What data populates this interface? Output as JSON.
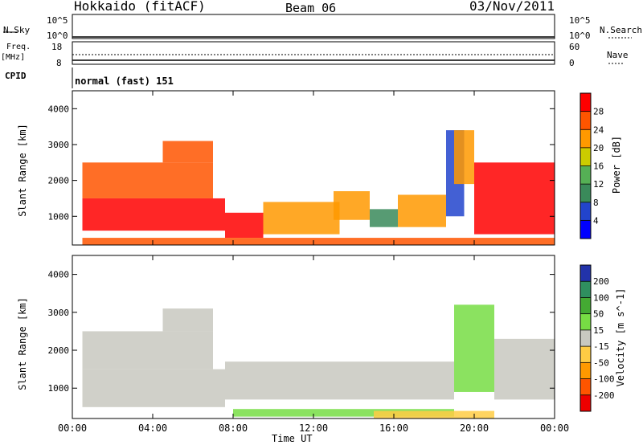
{
  "header": {
    "station": "Hokkaido (fitACF)",
    "beam": "Beam 06",
    "date": "03/Nov/2011"
  },
  "top_panels": {
    "nsky_label": "N.Sky",
    "nsky_ticks": [
      "10^5",
      "10^0"
    ],
    "nsearch_label": "N.Search",
    "nsearch_ticks": [
      "10^5",
      "10^0"
    ],
    "freq_label": "Freq.",
    "freq_unit": "[MHz]",
    "freq_ticks": [
      "18",
      "8"
    ],
    "nave_label": "Nave",
    "nave_ticks": [
      "60",
      "0"
    ],
    "cpid_label": "CPID",
    "cpid_value": "normal (fast) 151"
  },
  "chart_data": [
    {
      "type": "heatmap",
      "title": "",
      "xlabel": "",
      "ylabel": "Slant Range [km]",
      "x_ticks": [
        "00:00",
        "04:00",
        "08:00",
        "12:00",
        "16:00",
        "20:00",
        "00:00"
      ],
      "y_ticks": [
        "1000",
        "2000",
        "3000",
        "4000"
      ],
      "xlim": [
        0,
        24
      ],
      "ylim": [
        200,
        4500
      ],
      "colorbar": {
        "label": "Power [dB]",
        "ticks": [
          "4",
          "8",
          "12",
          "16",
          "20",
          "24",
          "28"
        ],
        "colors": [
          "#0000ff",
          "#2244cc",
          "#3a8a5a",
          "#55b055",
          "#cccc00",
          "#ff9900",
          "#ff5500",
          "#ff0000"
        ]
      },
      "regions": [
        {
          "t0": 0.5,
          "t1": 7.6,
          "r0": 600,
          "r1": 1500,
          "level": 29
        },
        {
          "t0": 0.5,
          "t1": 7.0,
          "r0": 1500,
          "r1": 2500,
          "level": 26
        },
        {
          "t0": 4.5,
          "t1": 7.0,
          "r0": 2500,
          "r1": 3100,
          "level": 25
        },
        {
          "t0": 7.6,
          "t1": 9.5,
          "r0": 400,
          "r1": 1100,
          "level": 28
        },
        {
          "t0": 9.5,
          "t1": 11.5,
          "r0": 500,
          "r1": 1400,
          "level": 22
        },
        {
          "t0": 11.5,
          "t1": 13.3,
          "r0": 500,
          "r1": 1400,
          "level": 23
        },
        {
          "t0": 13.0,
          "t1": 14.8,
          "r0": 900,
          "r1": 1700,
          "level": 21
        },
        {
          "t0": 14.8,
          "t1": 16.2,
          "r0": 700,
          "r1": 1200,
          "level": 10
        },
        {
          "t0": 16.2,
          "t1": 18.6,
          "r0": 700,
          "r1": 1600,
          "level": 22
        },
        {
          "t0": 18.6,
          "t1": 19.5,
          "r0": 1000,
          "r1": 3400,
          "level": 7
        },
        {
          "t0": 19.0,
          "t1": 20.0,
          "r0": 1900,
          "r1": 3400,
          "level": 20
        },
        {
          "t0": 20.0,
          "t1": 24.0,
          "r0": 500,
          "r1": 2500,
          "level": 28
        },
        {
          "t0": 0.5,
          "t1": 24.0,
          "r0": 200,
          "r1": 400,
          "level": 26
        }
      ]
    },
    {
      "type": "heatmap",
      "title": "",
      "xlabel": "Time UT",
      "ylabel": "Slant Range [km]",
      "x_ticks": [
        "00:00",
        "04:00",
        "08:00",
        "12:00",
        "16:00",
        "20:00",
        "00:00"
      ],
      "y_ticks": [
        "1000",
        "2000",
        "3000",
        "4000"
      ],
      "xlim": [
        0,
        24
      ],
      "ylim": [
        200,
        4500
      ],
      "colorbar": {
        "label": "Velocity [m s^-1]",
        "ticks": [
          "200",
          "100",
          "50",
          "15",
          "-15",
          "-50",
          "-100",
          "-200"
        ],
        "colors": [
          "#2233aa",
          "#2f8f5f",
          "#44aa33",
          "#77dd44",
          "#c8c8c0",
          "#ffcc44",
          "#ff9900",
          "#ff5500",
          "#ee0000"
        ]
      },
      "regions": [
        {
          "t0": 0.5,
          "t1": 7.6,
          "r0": 500,
          "r1": 1500,
          "level": 0
        },
        {
          "t0": 0.5,
          "t1": 7.0,
          "r0": 1500,
          "r1": 2500,
          "level": 0
        },
        {
          "t0": 4.5,
          "t1": 7.0,
          "r0": 2500,
          "r1": 3100,
          "level": 0
        },
        {
          "t0": 7.6,
          "t1": 19.0,
          "r0": 700,
          "r1": 1700,
          "level": 0
        },
        {
          "t0": 8.0,
          "t1": 19.0,
          "r0": 250,
          "r1": 450,
          "level": 40
        },
        {
          "t0": 19.0,
          "t1": 21.0,
          "r0": 900,
          "r1": 3200,
          "level": 40
        },
        {
          "t0": 21.0,
          "t1": 24.0,
          "r0": 700,
          "r1": 2300,
          "level": 0
        },
        {
          "t0": 15.0,
          "t1": 21.0,
          "r0": 200,
          "r1": 400,
          "level": -40
        }
      ]
    }
  ]
}
